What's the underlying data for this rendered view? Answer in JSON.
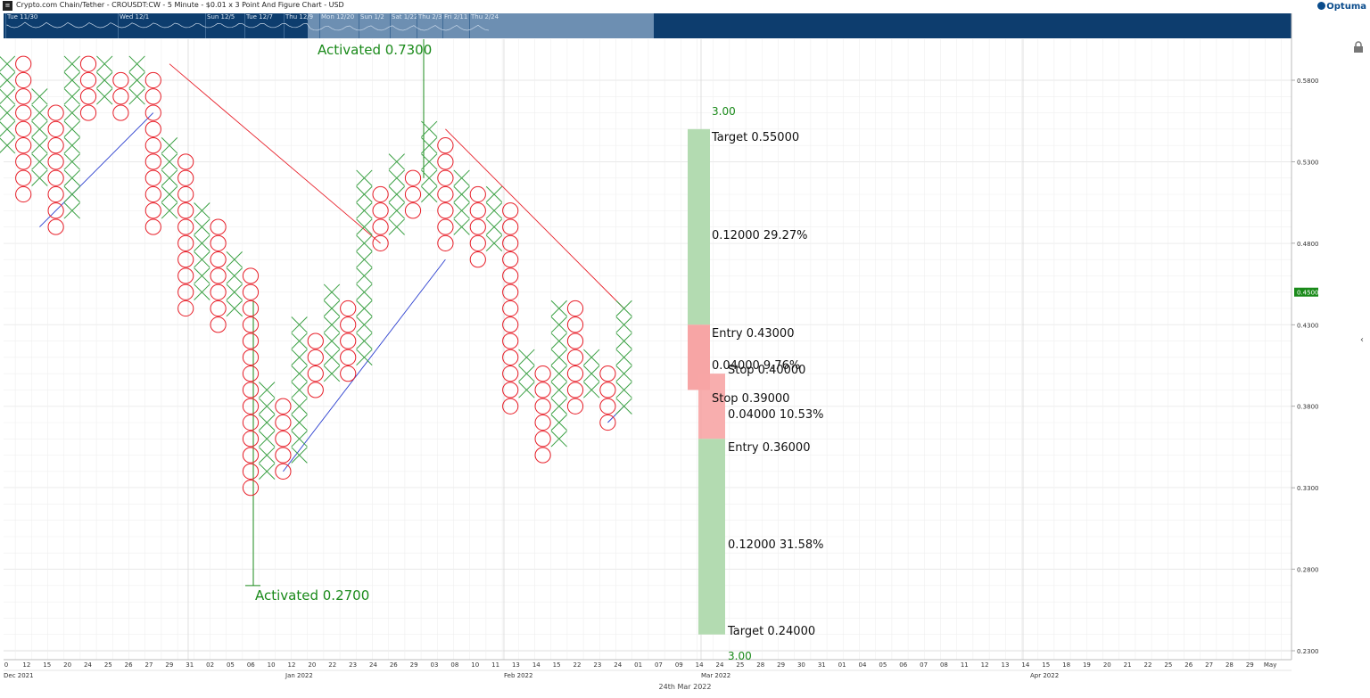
{
  "header": {
    "title": "Crypto.com Chain/Tether - CROUSDT:CW - 5 Minute - $0.01 x 3 Point And Figure Chart - USD",
    "brand": "Optuma",
    "logo_icon": "square-menu-icon"
  },
  "navigator": {
    "labels": [
      "Tue 11/30",
      "Wed 12/1",
      "Sun 12/5",
      "Tue 12/7",
      "Thu 12/9",
      "Mon 12/20",
      "Sun 1/2",
      "Sat 1/22",
      "Thu 2/3",
      "Fri 2/11",
      "Thu 2/24"
    ]
  },
  "colors": {
    "x": "#3aa043",
    "o": "#e8202a",
    "trend_up": "#2b3fcf",
    "trend_down": "#e8202a",
    "annotation": "#1a8a1a",
    "target_zone": "#b3dbb1",
    "stop_zone": "#f7a5a5",
    "price_tag": "#1a8a1a",
    "nav_bg": "#0d3d6e"
  },
  "chart_data": {
    "type": "point-and-figure",
    "box_size": 0.01,
    "reversal": 3,
    "y_axis": {
      "ticks": [
        "0.5800",
        "0.5300",
        "0.4800",
        "0.4300",
        "0.3800",
        "0.3300",
        "0.2800",
        "0.2300"
      ],
      "ylim": [
        0.23,
        0.592
      ],
      "current_price": "0.4500"
    },
    "x_axis": {
      "ticks": [
        "0",
        "12",
        "15",
        "20",
        "24",
        "25",
        "26",
        "27",
        "29",
        "31",
        "02",
        "05",
        "06",
        "10",
        "12",
        "20",
        "22",
        "23",
        "24",
        "26",
        "29",
        "03",
        "08",
        "10",
        "11",
        "13",
        "14",
        "15",
        "22",
        "23",
        "24",
        "01",
        "07",
        "09",
        "14",
        "24",
        "25",
        "28",
        "29",
        "30",
        "31",
        "01",
        "04",
        "05",
        "06",
        "07",
        "08",
        "11",
        "12",
        "13",
        "14",
        "15",
        "18",
        "19",
        "20",
        "21",
        "22",
        "25",
        "26",
        "27",
        "28",
        "29",
        "May"
      ],
      "months": [
        "Dec 2021",
        "Jan 2022",
        "Feb 2022",
        "Mar 2022",
        "Apr 2022"
      ]
    },
    "date_caption": "24th Mar 2022",
    "columns": [
      {
        "type": "X",
        "low": 0.54,
        "high": 0.59
      },
      {
        "type": "O",
        "low": 0.51,
        "high": 0.59
      },
      {
        "type": "X",
        "low": 0.52,
        "high": 0.57
      },
      {
        "type": "O",
        "low": 0.49,
        "high": 0.56
      },
      {
        "type": "X",
        "low": 0.5,
        "high": 0.59
      },
      {
        "type": "O",
        "low": 0.56,
        "high": 0.59
      },
      {
        "type": "X",
        "low": 0.57,
        "high": 0.59
      },
      {
        "type": "O",
        "low": 0.56,
        "high": 0.58
      },
      {
        "type": "X",
        "low": 0.57,
        "high": 0.59
      },
      {
        "type": "O",
        "low": 0.49,
        "high": 0.58
      },
      {
        "type": "X",
        "low": 0.5,
        "high": 0.54
      },
      {
        "type": "O",
        "low": 0.44,
        "high": 0.53
      },
      {
        "type": "X",
        "low": 0.45,
        "high": 0.5
      },
      {
        "type": "O",
        "low": 0.43,
        "high": 0.49
      },
      {
        "type": "X",
        "low": 0.44,
        "high": 0.47
      },
      {
        "type": "O",
        "low": 0.33,
        "high": 0.46
      },
      {
        "type": "X",
        "low": 0.34,
        "high": 0.39
      },
      {
        "type": "O",
        "low": 0.34,
        "high": 0.38
      },
      {
        "type": "X",
        "low": 0.35,
        "high": 0.43
      },
      {
        "type": "O",
        "low": 0.39,
        "high": 0.42
      },
      {
        "type": "X",
        "low": 0.4,
        "high": 0.45
      },
      {
        "type": "O",
        "low": 0.4,
        "high": 0.44
      },
      {
        "type": "X",
        "low": 0.41,
        "high": 0.52
      },
      {
        "type": "O",
        "low": 0.48,
        "high": 0.51
      },
      {
        "type": "X",
        "low": 0.49,
        "high": 0.53
      },
      {
        "type": "O",
        "low": 0.5,
        "high": 0.52
      },
      {
        "type": "X",
        "low": 0.51,
        "high": 0.55
      },
      {
        "type": "O",
        "low": 0.48,
        "high": 0.54
      },
      {
        "type": "X",
        "low": 0.49,
        "high": 0.52
      },
      {
        "type": "O",
        "low": 0.47,
        "high": 0.51
      },
      {
        "type": "X",
        "low": 0.48,
        "high": 0.51
      },
      {
        "type": "O",
        "low": 0.38,
        "high": 0.5
      },
      {
        "type": "X",
        "low": 0.39,
        "high": 0.41
      },
      {
        "type": "O",
        "low": 0.35,
        "high": 0.4
      },
      {
        "type": "X",
        "low": 0.36,
        "high": 0.44
      },
      {
        "type": "O",
        "low": 0.38,
        "high": 0.44
      },
      {
        "type": "X",
        "low": 0.39,
        "high": 0.41
      },
      {
        "type": "O",
        "low": 0.37,
        "high": 0.4
      },
      {
        "type": "X",
        "low": 0.38,
        "high": 0.44
      }
    ],
    "trendlines": [
      {
        "kind": "support",
        "from": [
          2,
          0.49
        ],
        "to": [
          9,
          0.56
        ]
      },
      {
        "kind": "resistance",
        "from": [
          10,
          0.59
        ],
        "to": [
          23,
          0.48
        ]
      },
      {
        "kind": "support",
        "from": [
          17,
          0.34
        ],
        "to": [
          27,
          0.47
        ]
      },
      {
        "kind": "resistance",
        "from": [
          27,
          0.55
        ],
        "to": [
          38,
          0.44
        ]
      },
      {
        "kind": "support",
        "from": [
          37,
          0.37
        ],
        "to": [
          38,
          0.38
        ]
      }
    ],
    "annotations": {
      "activated_top": {
        "label": "Activated 0.7300",
        "column": 23,
        "price": 0.52
      },
      "activated_bottom": {
        "label": "Activated 0.2700",
        "column": 14,
        "price": 0.27
      },
      "long_setup": {
        "ratio": "3.00",
        "target": "Target   0.55000",
        "reward": "0.12000   29.27%",
        "entry": "Entry   0.43000",
        "risk": "0.04000   9.76%",
        "stop": "Stop   0.39000"
      },
      "short_setup": {
        "ratio": "3.00",
        "stop": "Stop   0.40000",
        "risk": "0.04000   10.53%",
        "entry": "Entry   0.36000",
        "reward": "0.12000   31.58%",
        "target": "Target   0.24000"
      }
    }
  }
}
